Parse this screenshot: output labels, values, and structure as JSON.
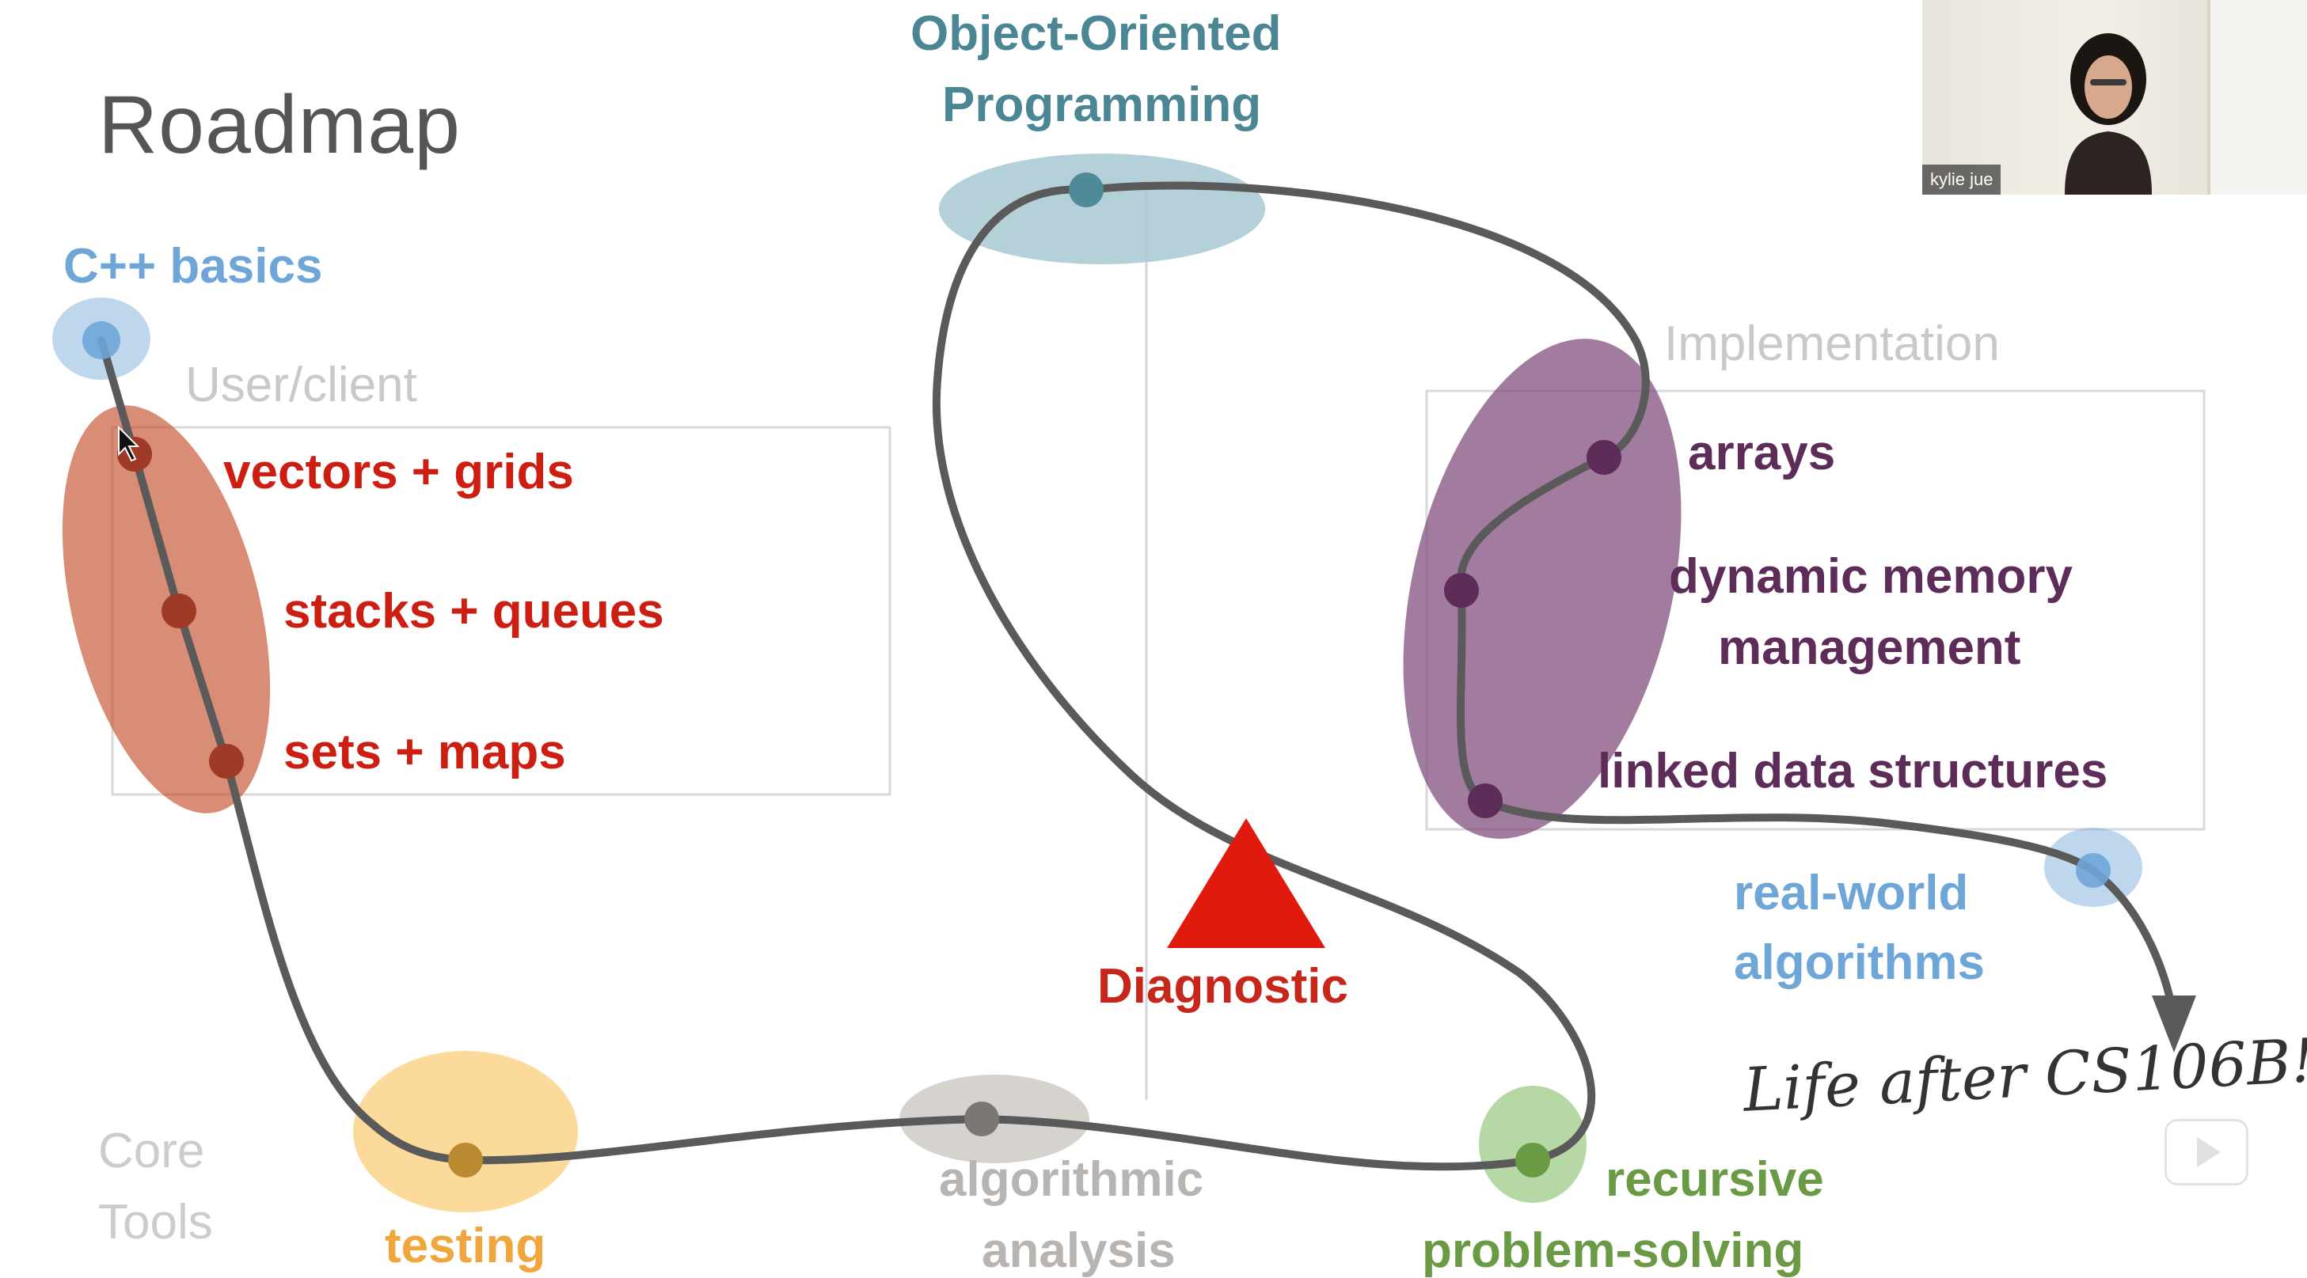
{
  "title": "Roadmap",
  "labels": {
    "cpp_basics": "C++ basics",
    "user_client": "User/client",
    "implementation": "Implementation",
    "vectors_grids": "vectors + grids",
    "stacks_queues": "stacks + queues",
    "sets_maps": "sets + maps",
    "oop_line1": "Object-Oriented",
    "oop_line2": "Programming",
    "arrays": "arrays",
    "dynamic_line1": "dynamic memory",
    "dynamic_line2": "management",
    "linked": "linked data structures",
    "realworld_line1": "real-world",
    "realworld_line2": "algorithms",
    "diagnostic": "Diagnostic",
    "life_after": "Life after CS106B!",
    "core_line1": "Core",
    "core_line2": "Tools",
    "testing": "testing",
    "algorithmic_line1": "algorithmic",
    "algorithmic_line2": "analysis",
    "recursive_line1": "recursive",
    "recursive_line2": "problem-solving"
  },
  "webcam": {
    "name": "kylie jue"
  },
  "colors": {
    "path": "#5a5a5a",
    "cpp": "#6fa6d8",
    "adt": "#d8826a",
    "adt_text": "#cc1f11",
    "oop": "#a7c9d2",
    "impl": "#9a6f92",
    "impl_text": "#5e2c59",
    "testing": "#fbd38a",
    "algorithmic": "#cfcac6",
    "recursive": "#a9d195",
    "diagnostic": "#e01b0e"
  }
}
